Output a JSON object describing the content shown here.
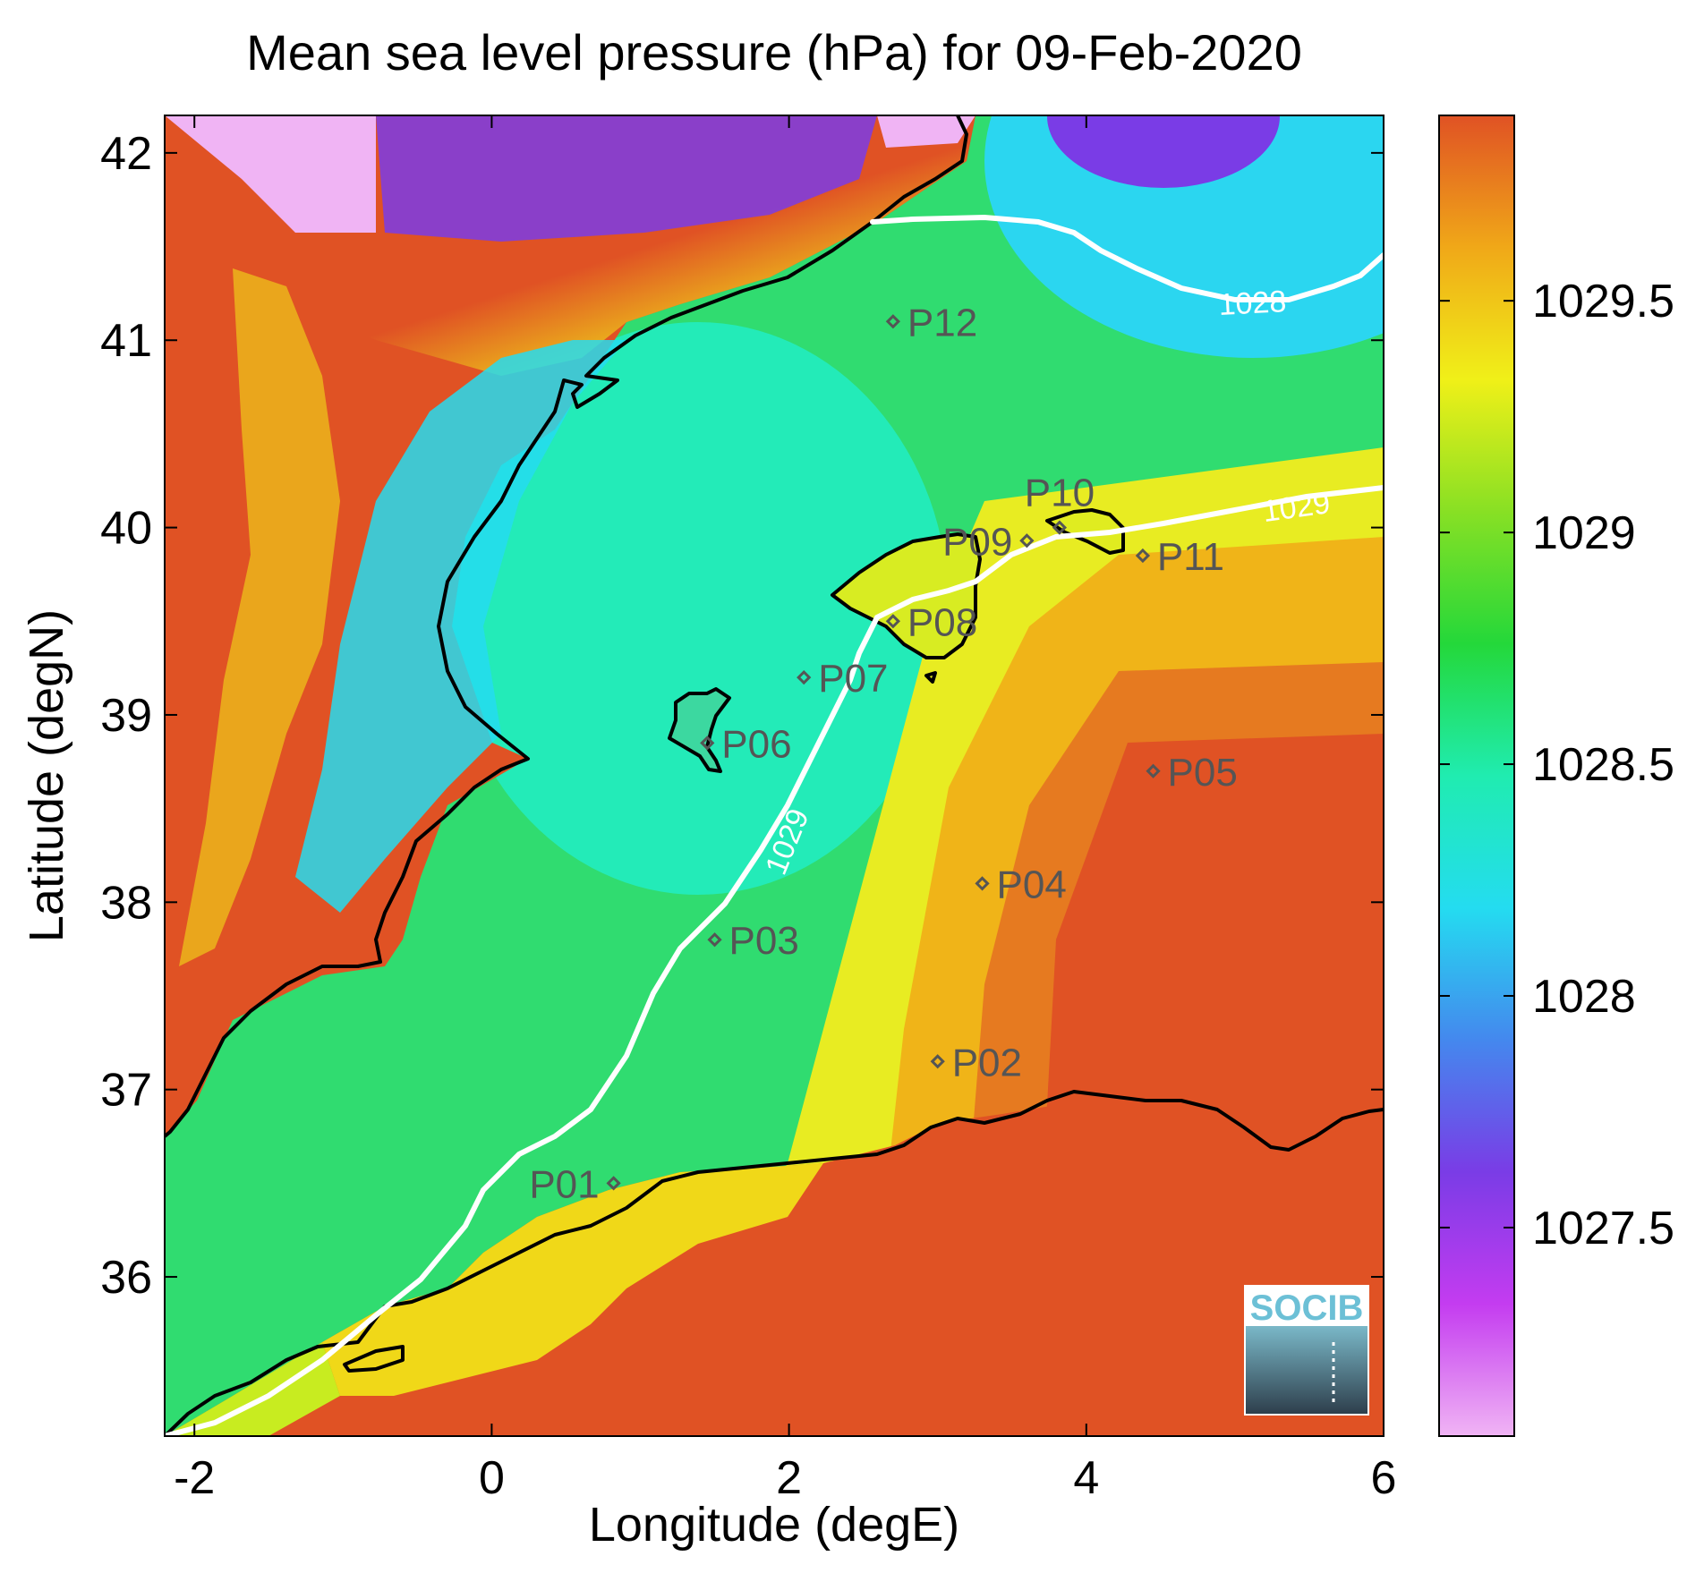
{
  "title": "Mean sea level pressure (hPa) for 09-Feb-2020",
  "axes": {
    "xlabel": "Longitude (degE)",
    "ylabel": "Latitude (degN)",
    "xlim": [
      -2.2,
      6.0
    ],
    "ylim": [
      35.15,
      42.2
    ],
    "xticks": [
      -2,
      0,
      2,
      4,
      6
    ],
    "yticks": [
      36,
      37,
      38,
      39,
      40,
      41,
      42
    ]
  },
  "colorbar": {
    "range": [
      1027.05,
      1029.9
    ],
    "ticks": [
      1027.5,
      1028,
      1028.5,
      1029,
      1029.5
    ],
    "tick_labels": [
      "1027.5",
      "1028",
      "1028.5",
      "1029",
      "1029.5"
    ],
    "colors": [
      "#f0b4f4",
      "#c43cf0",
      "#7a3ce6",
      "#4488ee",
      "#24dcf0",
      "#20ecb0",
      "#24d83a",
      "#88e024",
      "#f0f018",
      "#f0a818",
      "#e05224"
    ]
  },
  "stations": [
    {
      "name": "P01",
      "lon": 0.82,
      "lat": 36.5
    },
    {
      "name": "P02",
      "lon": 3.0,
      "lat": 37.15
    },
    {
      "name": "P03",
      "lon": 1.5,
      "lat": 37.8
    },
    {
      "name": "P04",
      "lon": 3.3,
      "lat": 38.1
    },
    {
      "name": "P05",
      "lon": 4.45,
      "lat": 38.7
    },
    {
      "name": "P06",
      "lon": 1.45,
      "lat": 38.85
    },
    {
      "name": "P07",
      "lon": 2.1,
      "lat": 39.2
    },
    {
      "name": "P08",
      "lon": 2.7,
      "lat": 39.5
    },
    {
      "name": "P09",
      "lon": 3.6,
      "lat": 39.93
    },
    {
      "name": "P10",
      "lon": 3.82,
      "lat": 40.0
    },
    {
      "name": "P11",
      "lon": 4.38,
      "lat": 39.85
    },
    {
      "name": "P12",
      "lon": 2.7,
      "lat": 41.1
    }
  ],
  "contours": [
    {
      "label": "1029",
      "value": 1029
    },
    {
      "label": "1028",
      "value": 1028
    }
  ],
  "logo": "SOCIB",
  "chart_data": {
    "type": "heatmap",
    "title": "Mean sea level pressure (hPa) for 09-Feb-2020",
    "xlabel": "Longitude (degE)",
    "ylabel": "Latitude (degN)",
    "xlim": [
      -2.2,
      6.0
    ],
    "ylim": [
      35.15,
      42.2
    ],
    "colorbar_range": [
      1027.05,
      1029.9
    ],
    "contour_levels": [
      1028,
      1029
    ],
    "grid": false
  }
}
